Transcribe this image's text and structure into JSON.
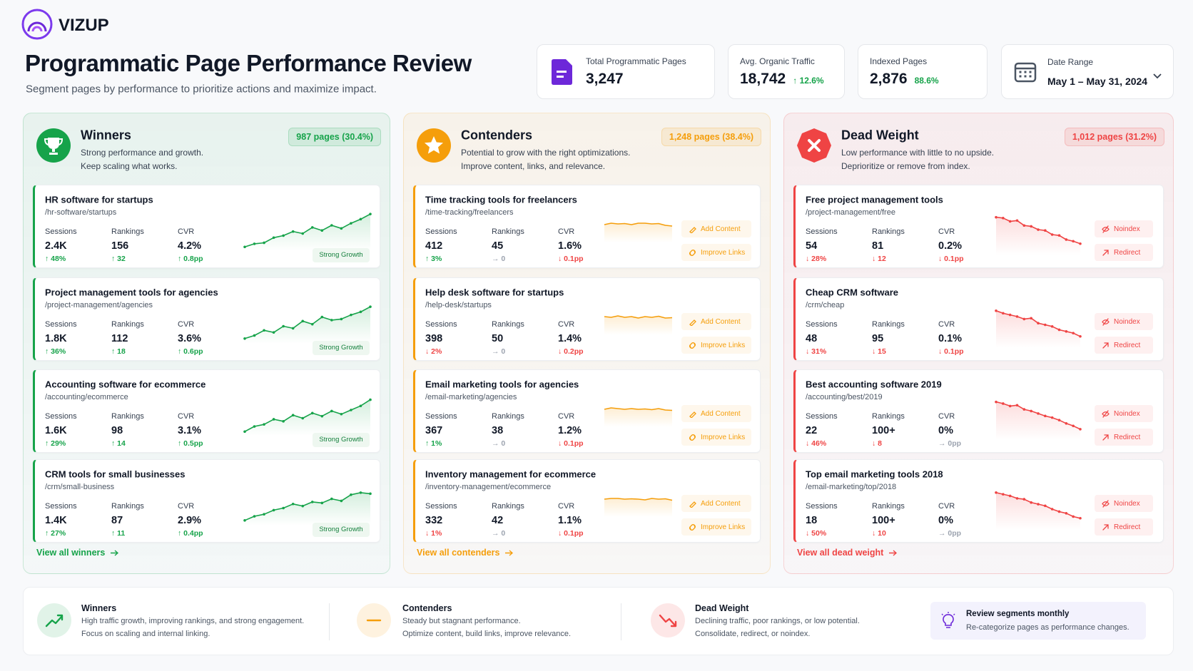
{
  "header": {
    "logo": "VIZUP",
    "title": "Programmatic Page Performance Review",
    "subtitle": "Segment pages by performance to prioritize actions and maximize impact."
  },
  "kpis": [
    {
      "label": "Total Programmatic Pages",
      "value": "3,247"
    },
    {
      "label": "Avg. Organic Traffic",
      "value": "18,742",
      "change": "↑ 12.6%"
    },
    {
      "label": "Indexed Pages",
      "value": "2,876",
      "change": "88.6%"
    },
    {
      "label": "Date Range",
      "value": "May 1 – May 31, 2024"
    }
  ],
  "segments": [
    {
      "title": "Winners",
      "color": "#16a34a",
      "count": "987 pages (30.4%)",
      "description": [
        "Strong performance and growth.",
        "Keep scaling what works."
      ],
      "link": "View all winners",
      "badge": "Strong Growth",
      "trend_ylim": [
        0,
        100
      ],
      "pages": [
        {
          "title": "HR software for startups",
          "url": "/hr-software/startups",
          "metrics": [
            {
              "label": "Sessions",
              "value": "2.4K",
              "change": "↑ 48%"
            },
            {
              "label": "Rankings",
              "value": "156",
              "change": "↑ 32"
            },
            {
              "label": "CVR",
              "value": "4.2%",
              "change": "↑ 0.8pp"
            }
          ],
          "trend": [
            8,
            14,
            16,
            26,
            30,
            38,
            34,
            46,
            40,
            50,
            44,
            54,
            62,
            72
          ]
        },
        {
          "title": "Project management tools for agencies",
          "url": "/project-management/agencies",
          "metrics": [
            {
              "label": "Sessions",
              "value": "1.8K",
              "change": "↑ 36%"
            },
            {
              "label": "Rankings",
              "value": "112",
              "change": "↑ 18"
            },
            {
              "label": "CVR",
              "value": "3.6%",
              "change": "↑ 0.6pp"
            }
          ],
          "trend": [
            10,
            16,
            26,
            22,
            34,
            30,
            44,
            38,
            52,
            46,
            48,
            56,
            62,
            72
          ]
        },
        {
          "title": "Accounting software for ecommerce",
          "url": "/accounting/ecommerce",
          "metrics": [
            {
              "label": "Sessions",
              "value": "1.6K",
              "change": "↑ 29%"
            },
            {
              "label": "Rankings",
              "value": "98",
              "change": "↑ 14"
            },
            {
              "label": "CVR",
              "value": "3.1%",
              "change": "↑ 0.5pp"
            }
          ],
          "trend": [
            8,
            18,
            22,
            32,
            28,
            40,
            34,
            44,
            38,
            48,
            42,
            50,
            58,
            70
          ]
        },
        {
          "title": "CRM tools for small businesses",
          "url": "/crm/small-business",
          "metrics": [
            {
              "label": "Sessions",
              "value": "1.4K",
              "change": "↑ 27%"
            },
            {
              "label": "Rankings",
              "value": "87",
              "change": "↑ 11"
            },
            {
              "label": "CVR",
              "value": "2.9%",
              "change": "↑ 0.4pp"
            }
          ],
          "trend": [
            10,
            18,
            22,
            30,
            34,
            42,
            38,
            46,
            44,
            52,
            48,
            60,
            64,
            62
          ]
        }
      ]
    },
    {
      "title": "Contenders",
      "color": "#f59e0b",
      "count": "1,248 pages (38.4%)",
      "description": [
        "Potential to grow with the right optimizations.",
        "Improve content, links, and relevance."
      ],
      "link": "View all contenders",
      "actions": [
        "Add Content",
        "Improve Links"
      ],
      "trend_ylim": [
        0,
        100
      ],
      "pages": [
        {
          "title": "Time tracking tools for freelancers",
          "url": "/time-tracking/freelancers",
          "metrics": [
            {
              "label": "Sessions",
              "value": "412",
              "change": "↑ 3%"
            },
            {
              "label": "Rankings",
              "value": "45",
              "change": "→ 0"
            },
            {
              "label": "CVR",
              "value": "1.6%",
              "change": "↓ 0.1pp"
            }
          ],
          "trend": [
            50,
            54,
            52,
            53,
            50,
            54,
            54,
            52,
            53,
            48,
            46
          ]
        },
        {
          "title": "Help desk software for startups",
          "url": "/help-desk/startups",
          "metrics": [
            {
              "label": "Sessions",
              "value": "398",
              "change": "↓ 2%"
            },
            {
              "label": "Rankings",
              "value": "50",
              "change": "→ 0"
            },
            {
              "label": "CVR",
              "value": "1.4%",
              "change": "↓ 0.2pp"
            }
          ],
          "trend": [
            52,
            50,
            54,
            50,
            52,
            48,
            52,
            50,
            53,
            48,
            49
          ]
        },
        {
          "title": "Email marketing tools for agencies",
          "url": "/email-marketing/agencies",
          "metrics": [
            {
              "label": "Sessions",
              "value": "367",
              "change": "↑ 1%"
            },
            {
              "label": "Rankings",
              "value": "38",
              "change": "→ 0"
            },
            {
              "label": "CVR",
              "value": "1.2%",
              "change": "↓ 0.1pp"
            }
          ],
          "trend": [
            50,
            54,
            52,
            50,
            52,
            50,
            51,
            49,
            52,
            48,
            47
          ]
        },
        {
          "title": "Inventory management for ecommerce",
          "url": "/inventory-management/ecommerce",
          "metrics": [
            {
              "label": "Sessions",
              "value": "332",
              "change": "↓ 1%"
            },
            {
              "label": "Rankings",
              "value": "42",
              "change": "→ 0"
            },
            {
              "label": "CVR",
              "value": "1.1%",
              "change": "↓ 0.1pp"
            }
          ],
          "trend": [
            50,
            52,
            52,
            50,
            51,
            50,
            48,
            52,
            50,
            51,
            47
          ]
        }
      ]
    },
    {
      "title": "Dead Weight",
      "color": "#ef4444",
      "count": "1,012 pages (31.2%)",
      "description": [
        "Low performance with little to no upside.",
        "Deprioritize or remove from index."
      ],
      "link": "View all dead weight",
      "actions": [
        "Noindex",
        "Redirect"
      ],
      "trend_ylim": [
        0,
        100
      ],
      "pages": [
        {
          "title": "Free project management tools",
          "url": "/project-management/free",
          "metrics": [
            {
              "label": "Sessions",
              "value": "54",
              "change": "↓ 28%"
            },
            {
              "label": "Rankings",
              "value": "81",
              "change": "↓ 12"
            },
            {
              "label": "CVR",
              "value": "0.2%",
              "change": "↓ 0.1pp"
            }
          ],
          "trend": [
            92,
            90,
            82,
            84,
            72,
            70,
            62,
            60,
            50,
            48,
            38,
            34,
            28
          ]
        },
        {
          "title": "Cheap CRM software",
          "url": "/crm/cheap",
          "metrics": [
            {
              "label": "Sessions",
              "value": "48",
              "change": "↓ 31%"
            },
            {
              "label": "Rankings",
              "value": "95",
              "change": "↓ 15"
            },
            {
              "label": "CVR",
              "value": "0.1%",
              "change": "↓ 0.1pp"
            }
          ],
          "trend": [
            90,
            84,
            80,
            76,
            70,
            72,
            60,
            56,
            52,
            44,
            40,
            36,
            28
          ]
        },
        {
          "title": "Best accounting software 2019",
          "url": "/accounting/best/2019",
          "metrics": [
            {
              "label": "Sessions",
              "value": "22",
              "change": "↓ 46%"
            },
            {
              "label": "Rankings",
              "value": "100+",
              "change": "↓ 8"
            },
            {
              "label": "CVR",
              "value": "0%",
              "change": "→ 0pp"
            }
          ],
          "trend": [
            92,
            88,
            82,
            84,
            74,
            70,
            64,
            58,
            54,
            48,
            40,
            34,
            26
          ]
        },
        {
          "title": "Top email marketing tools 2018",
          "url": "/email-marketing/top/2018",
          "metrics": [
            {
              "label": "Sessions",
              "value": "18",
              "change": "↓ 50%"
            },
            {
              "label": "Rankings",
              "value": "100+",
              "change": "↓ 10"
            },
            {
              "label": "CVR",
              "value": "0%",
              "change": "→ 0pp"
            }
          ],
          "trend": [
            90,
            86,
            82,
            76,
            74,
            66,
            62,
            58,
            50,
            44,
            40,
            32,
            28
          ]
        }
      ]
    }
  ],
  "legend": [
    {
      "title": "Winners",
      "lines": [
        "High traffic growth, improving rankings, and strong engagement.",
        "Focus on scaling and internal linking."
      ]
    },
    {
      "title": "Contenders",
      "lines": [
        "Steady but stagnant performance.",
        "Optimize content, build links, improve relevance."
      ]
    },
    {
      "title": "Dead Weight",
      "lines": [
        "Declining traffic, poor rankings, or low potential.",
        "Consolidate, redirect, or noindex."
      ]
    }
  ],
  "tip": {
    "title": "Review segments monthly",
    "text": "Re-categorize pages as performance changes."
  }
}
